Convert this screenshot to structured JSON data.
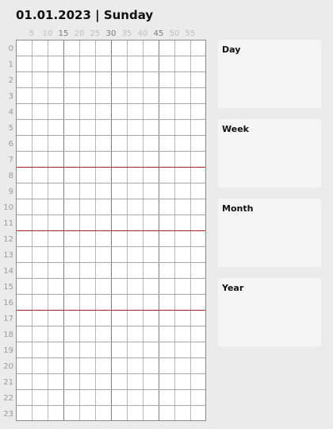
{
  "header": {
    "title": "01.01.2023 | Sunday"
  },
  "minute_labels": [
    {
      "text": "5",
      "major": false
    },
    {
      "text": "10",
      "major": false
    },
    {
      "text": "15",
      "major": true
    },
    {
      "text": "20",
      "major": false
    },
    {
      "text": "25",
      "major": false
    },
    {
      "text": "30",
      "major": true
    },
    {
      "text": "35",
      "major": false
    },
    {
      "text": "40",
      "major": false
    },
    {
      "text": "45",
      "major": true
    },
    {
      "text": "50",
      "major": false
    },
    {
      "text": "55",
      "major": false
    }
  ],
  "hour_labels": [
    "0",
    "1",
    "2",
    "3",
    "4",
    "5",
    "6",
    "7",
    "8",
    "9",
    "10",
    "11",
    "12",
    "13",
    "14",
    "15",
    "16",
    "17",
    "18",
    "19",
    "20",
    "21",
    "22",
    "23"
  ],
  "marker_hours": [
    8,
    12,
    17
  ],
  "panels": {
    "day": {
      "label": "Day"
    },
    "week": {
      "label": "Week"
    },
    "month": {
      "label": "Month"
    },
    "year": {
      "label": "Year"
    }
  },
  "colors": {
    "background": "#ebebeb",
    "grid_background": "#ffffff",
    "marker_line": "#b22222",
    "panel_background": "#f5f5f5"
  }
}
